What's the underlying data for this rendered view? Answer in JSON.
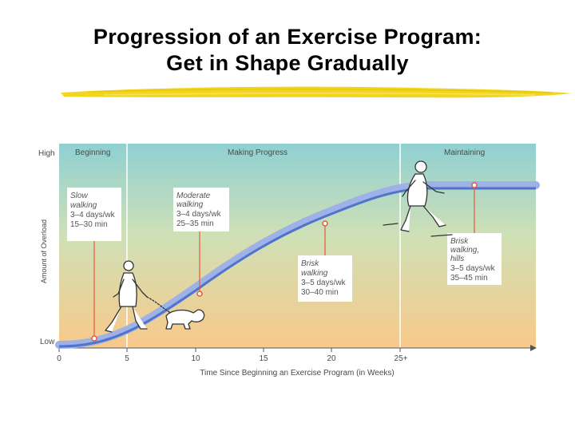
{
  "title": {
    "line1": "Progression of an Exercise Program:",
    "line2": "Get in Shape Gradually"
  },
  "diagram": {
    "ylabel": "Amount of Overload",
    "xlabel": "Time Since Beginning an Exercise Program (in Weeks)",
    "y_high": "High",
    "y_low": "Low",
    "x_ticks": [
      "0",
      "5",
      "10",
      "15",
      "20",
      "25+"
    ],
    "phases": [
      "Beginning",
      "Making Progress",
      "Maintaining"
    ],
    "stages": [
      {
        "title1": "Slow",
        "title2": "walking",
        "title3": "",
        "detail1": "3–4 days/wk",
        "detail2": "15–30 min"
      },
      {
        "title1": "Moderate",
        "title2": "walking",
        "title3": "",
        "detail1": "3–4 days/wk",
        "detail2": "25–35 min"
      },
      {
        "title1": "Brisk",
        "title2": "walking",
        "title3": "",
        "detail1": "3–5 days/wk",
        "detail2": "30–40 min"
      },
      {
        "title1": "Brisk",
        "title2": "walking,",
        "title3": "hills",
        "detail1": "3–5 days/wk",
        "detail2": "35–45 min"
      }
    ],
    "colors": {
      "sky_top": "#8fd0d2",
      "sky_bottom": "#f7c98b",
      "curve": "#4f74c9",
      "marker": "#e25b3c",
      "divider": "#ffffff"
    }
  }
}
